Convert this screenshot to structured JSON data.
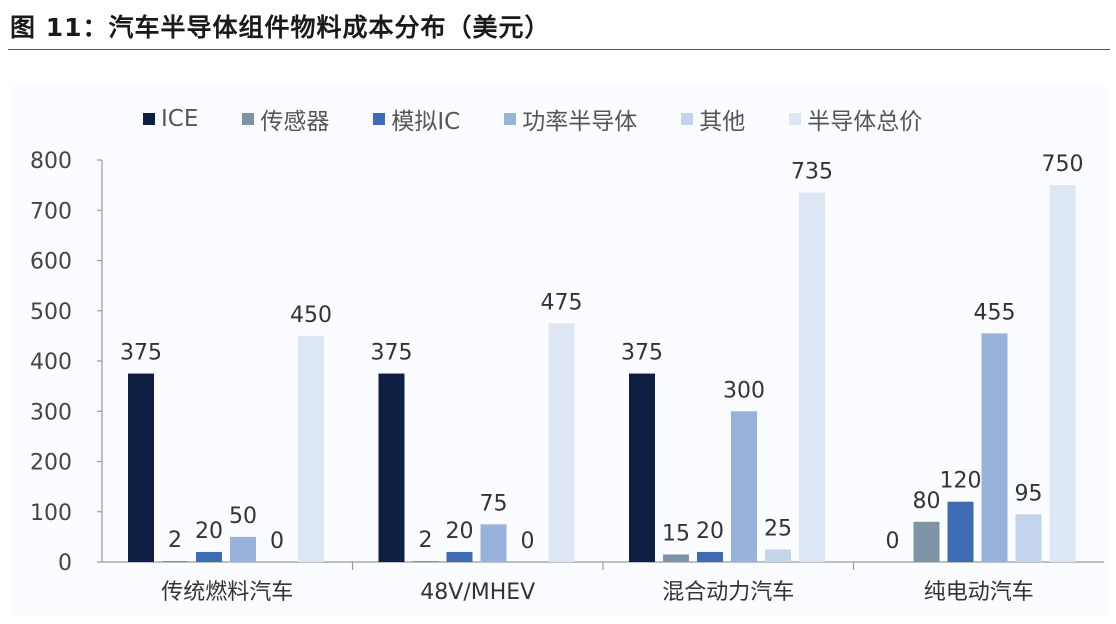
{
  "figure": {
    "title": "图 11：汽车半导体组件物料成本分布（美元）"
  },
  "legend": [
    {
      "label": "ICE",
      "color": "#0f1f44"
    },
    {
      "label": "传感器",
      "color": "#7f93a4"
    },
    {
      "label": "模拟IC",
      "color": "#3f6bb4"
    },
    {
      "label": "功率半导体",
      "color": "#98b2dc"
    },
    {
      "label": "其他",
      "color": "#c4d4ec"
    },
    {
      "label": "半导体总价",
      "color": "#dde6f5"
    }
  ],
  "chart_data": {
    "type": "bar",
    "title": "汽车半导体组件物料成本分布（美元）",
    "xlabel": "",
    "ylabel": "",
    "ylim": [
      0,
      800
    ],
    "yticks": [
      0,
      100,
      200,
      300,
      400,
      500,
      600,
      700,
      800
    ],
    "categories": [
      "传统燃料汽车",
      "48V/MHEV",
      "混合动力汽车",
      "纯电动汽车"
    ],
    "series": [
      {
        "name": "ICE",
        "color": "#0f1f44",
        "values": [
          375,
          375,
          375,
          0
        ]
      },
      {
        "name": "传感器",
        "color": "#7f93a4",
        "values": [
          2,
          2,
          15,
          80
        ]
      },
      {
        "name": "模拟IC",
        "color": "#3f6bb4",
        "values": [
          20,
          20,
          20,
          120
        ]
      },
      {
        "name": "功率半导体",
        "color": "#98b2dc",
        "values": [
          50,
          75,
          300,
          455
        ]
      },
      {
        "name": "其他",
        "color": "#c4d4ec",
        "values": [
          0,
          0,
          25,
          95
        ]
      },
      {
        "name": "半导体总价",
        "color": "#dde6f5",
        "values": [
          450,
          475,
          735,
          750
        ]
      }
    ],
    "grid": false,
    "legend_position": "top"
  }
}
